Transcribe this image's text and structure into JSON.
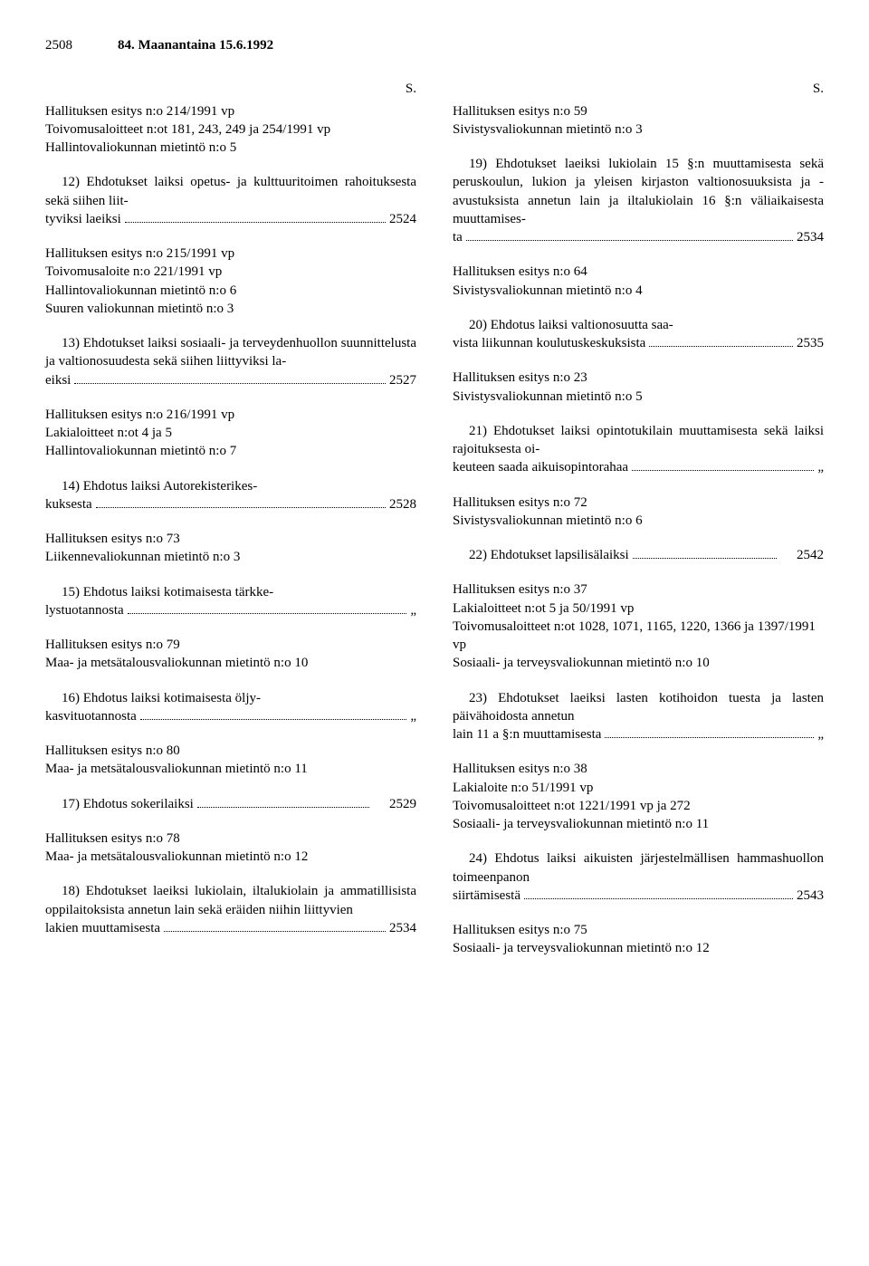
{
  "header": {
    "page_number": "2508",
    "title": "84. Maanantaina 15.6.1992"
  },
  "s_label": "S.",
  "ditto": "„",
  "left": {
    "e1": {
      "l1": "Hallituksen esitys n:o 214/1991 vp",
      "l2": "Toivomusaloitteet n:ot 181, 243, 249 ja 254/1991 vp",
      "l3": "Hallintovaliokunnan mietintö n:o 5"
    },
    "e2": {
      "text": "12) Ehdotukset laiksi opetus- ja kulttuuritoimen rahoituksesta sekä siihen liit-",
      "last_pre": "tyviksi laeiksi",
      "page": "2524"
    },
    "e3": {
      "l1": "Hallituksen esitys n:o 215/1991 vp",
      "l2": "Toivomusaloite n:o 221/1991 vp",
      "l3": "Hallintovaliokunnan mietintö n:o 6",
      "l4": "Suuren valiokunnan mietintö n:o 3"
    },
    "e4": {
      "text": "13) Ehdotukset laiksi sosiaali- ja terveydenhuollon suunnittelusta ja valtionosuudesta sekä siihen liittyviksi la-",
      "last_pre": "eiksi",
      "page": "2527"
    },
    "e5": {
      "l1": "Hallituksen esitys n:o 216/1991 vp",
      "l2": "Lakialoitteet n:ot 4 ja 5",
      "l3": "Hallintovaliokunnan mietintö n:o 7"
    },
    "e6": {
      "text": "14) Ehdotus laiksi Autorekisterikes-",
      "last_pre": "kuksesta",
      "page": "2528"
    },
    "e7": {
      "l1": "Hallituksen esitys n:o 73",
      "l2": "Liikennevaliokunnan mietintö n:o 3"
    },
    "e8": {
      "text": "15) Ehdotus laiksi kotimaisesta tärkke-",
      "last_pre": "lystuotannosta"
    },
    "e9": {
      "l1": "Hallituksen esitys n:o 79",
      "l2": "Maa- ja metsätalousvaliokunnan mietintö n:o 10"
    },
    "e10": {
      "text": "16) Ehdotus laiksi kotimaisesta öljy-",
      "last_pre": "kasvituotannosta"
    },
    "e11": {
      "l1": "Hallituksen esitys n:o 80",
      "l2": "Maa- ja metsätalousvaliokunnan mietintö n:o 11"
    },
    "e12": {
      "last_pre": "17) Ehdotus sokerilaiksi",
      "page": "2529"
    },
    "e13": {
      "l1": "Hallituksen esitys n:o 78",
      "l2": "Maa- ja metsätalousvaliokunnan mietintö n:o 12"
    },
    "e14": {
      "text": "18) Ehdotukset laeiksi lukiolain, iltalukiolain ja ammatillisista oppilaitoksista annetun lain sekä eräiden niihin liittyvien",
      "last_pre": "lakien muuttamisesta",
      "page": "2534"
    }
  },
  "right": {
    "e1": {
      "l1": "Hallituksen esitys n:o 59",
      "l2": "Sivistysvaliokunnan mietintö n:o 3"
    },
    "e2": {
      "text": "19) Ehdotukset laeiksi lukiolain 15 §:n muuttamisesta sekä peruskoulun, lukion ja yleisen kirjaston valtionosuuksista ja -avustuksista annetun lain ja iltalukiolain 16 §:n väliaikaisesta muuttamises-",
      "last_pre": "ta",
      "page": "2534"
    },
    "e3": {
      "l1": "Hallituksen esitys n:o 64",
      "l2": "Sivistysvaliokunnan mietintö n:o 4"
    },
    "e4": {
      "text": "20) Ehdotus laiksi valtionosuutta saa-",
      "last_pre": "vista liikunnan koulutuskeskuksista",
      "page": "2535"
    },
    "e5": {
      "l1": "Hallituksen esitys n:o 23",
      "l2": "Sivistysvaliokunnan mietintö n:o 5"
    },
    "e6": {
      "text": "21) Ehdotukset laiksi opintotukilain muuttamisesta sekä laiksi rajoituksesta oi-",
      "last_pre": "keuteen saada aikuisopintorahaa"
    },
    "e7": {
      "l1": "Hallituksen esitys n:o 72",
      "l2": "Sivistysvaliokunnan mietintö n:o 6"
    },
    "e8": {
      "last_pre": "22) Ehdotukset lapsilisälaiksi",
      "page": "2542"
    },
    "e9": {
      "l1": "Hallituksen esitys n:o 37",
      "l2": "Lakialoitteet n:ot 5 ja 50/1991 vp",
      "l3": "Toivomusaloitteet n:ot 1028, 1071, 1165, 1220, 1366 ja 1397/1991 vp",
      "l4": "Sosiaali- ja terveysvaliokunnan mietintö n:o 10"
    },
    "e10": {
      "text": "23) Ehdotukset laeiksi lasten kotihoidon tuesta ja lasten päivähoidosta annetun",
      "last_pre": "lain 11 a §:n muuttamisesta"
    },
    "e11": {
      "l1": "Hallituksen esitys n:o 38",
      "l2": "Lakialoite n:o 51/1991 vp",
      "l3": "Toivomusaloitteet n:ot 1221/1991 vp ja 272",
      "l4": "Sosiaali- ja terveysvaliokunnan mietintö n:o 11"
    },
    "e12": {
      "text": "24) Ehdotus laiksi aikuisten järjestelmällisen hammashuollon toimeenpanon",
      "last_pre": "siirtämisestä",
      "page": "2543"
    },
    "e13": {
      "l1": "Hallituksen esitys n:o 75",
      "l2": "Sosiaali- ja terveysvaliokunnan mietintö n:o 12"
    }
  }
}
